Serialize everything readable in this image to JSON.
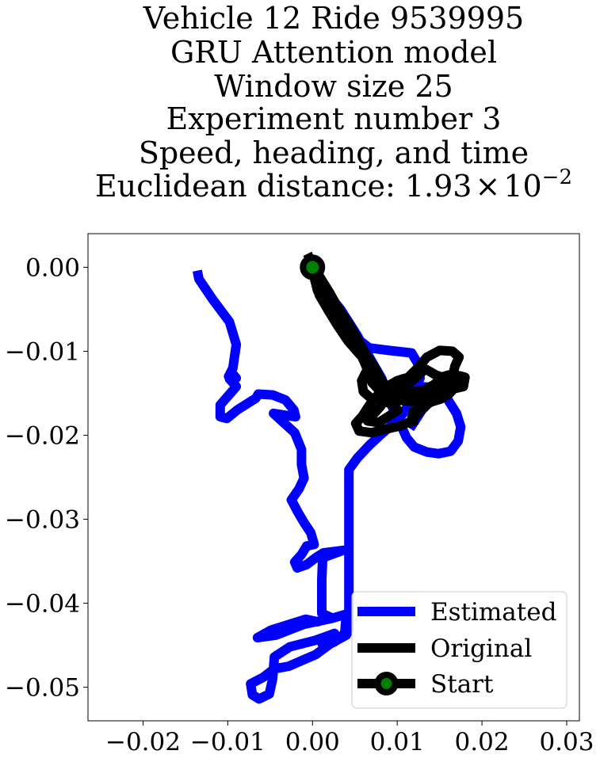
{
  "chart_data": {
    "type": "line",
    "title_lines": [
      "Vehicle 12 Ride 9539995",
      "GRU Attention model",
      "Window size 25",
      "Experiment number 3",
      "Speed, heading, and time"
    ],
    "title_metric_prefix": "Euclidean distance: ",
    "title_metric_mantissa": "1.93",
    "title_metric_times": "×",
    "title_metric_base": "10",
    "title_metric_exponent": "−2",
    "xlabel": "",
    "ylabel": "",
    "xlim": [
      -0.0265,
      0.0315
    ],
    "ylim": [
      -0.054,
      0.004
    ],
    "xticks": [
      -0.02,
      -0.01,
      0.0,
      0.01,
      0.02,
      0.03
    ],
    "xtick_labels": [
      "−0.02",
      "−0.01",
      "0.00",
      "0.01",
      "0.02",
      "0.03"
    ],
    "yticks": [
      0.0,
      -0.01,
      -0.02,
      -0.03,
      -0.04,
      -0.05
    ],
    "ytick_labels": [
      "0.00",
      "−0.01",
      "−0.02",
      "−0.03",
      "−0.04",
      "−0.05"
    ],
    "grid": false,
    "legend_position": "lower-right",
    "series": [
      {
        "name": "Estimated",
        "color": "#0000ff",
        "points": [
          [
            -0.0136,
            -0.0004
          ],
          [
            -0.0134,
            -0.0014
          ],
          [
            -0.0118,
            -0.0038
          ],
          [
            -0.0098,
            -0.0065
          ],
          [
            -0.009,
            -0.0092
          ],
          [
            -0.0094,
            -0.012
          ],
          [
            -0.0099,
            -0.013
          ],
          [
            -0.0094,
            -0.0127
          ],
          [
            -0.009,
            -0.0132
          ],
          [
            -0.0098,
            -0.0133
          ],
          [
            -0.009,
            -0.0142
          ],
          [
            -0.0109,
            -0.0164
          ],
          [
            -0.0109,
            -0.0178
          ],
          [
            -0.0101,
            -0.018
          ],
          [
            -0.0089,
            -0.017
          ],
          [
            -0.0067,
            -0.0156
          ],
          [
            -0.0064,
            -0.0151
          ],
          [
            -0.0047,
            -0.0152
          ],
          [
            -0.0032,
            -0.0158
          ],
          [
            -0.0022,
            -0.017
          ],
          [
            -0.002,
            -0.0178
          ],
          [
            -0.0046,
            -0.0174
          ],
          [
            -0.0021,
            -0.0197
          ],
          [
            -0.0013,
            -0.0217
          ],
          [
            -0.0013,
            -0.0235
          ],
          [
            -0.001,
            -0.0251
          ],
          [
            -0.0016,
            -0.0264
          ],
          [
            -0.0025,
            -0.0277
          ],
          [
            -0.0017,
            -0.0292
          ],
          [
            -0.001,
            -0.0304
          ],
          [
            -0.0002,
            -0.0316
          ],
          [
            0.0002,
            -0.033
          ],
          [
            -0.0007,
            -0.0332
          ],
          [
            -0.0013,
            -0.0342
          ],
          [
            -0.0021,
            -0.0351
          ],
          [
            -0.0018,
            -0.0358
          ],
          [
            -0.0007,
            -0.0354
          ],
          [
            0.0005,
            -0.0345
          ],
          [
            0.0013,
            -0.034
          ],
          [
            0.0036,
            -0.0337
          ],
          [
            0.0012,
            -0.0346
          ],
          [
            0.0011,
            -0.0372
          ],
          [
            0.0011,
            -0.0412
          ],
          [
            0.0022,
            -0.0417
          ],
          [
            0.0006,
            -0.0422
          ],
          [
            -0.0008,
            -0.0419
          ],
          [
            -0.0049,
            -0.0432
          ],
          [
            -0.0065,
            -0.0441
          ],
          [
            -0.0043,
            -0.0438
          ],
          [
            -0.001,
            -0.0425
          ],
          [
            0.0023,
            -0.0418
          ],
          [
            0.004,
            -0.0413
          ],
          [
            0.0038,
            -0.0436
          ],
          [
            0.0026,
            -0.0446
          ],
          [
            0.0013,
            -0.0452
          ],
          [
            0.001,
            -0.0445
          ],
          [
            0.0016,
            -0.044
          ],
          [
            0.0026,
            -0.0436
          ],
          [
            0.0004,
            -0.0444
          ],
          [
            -0.0027,
            -0.0452
          ],
          [
            -0.0045,
            -0.0464
          ],
          [
            -0.0047,
            -0.049
          ],
          [
            -0.0051,
            -0.0508
          ],
          [
            -0.0063,
            -0.0514
          ],
          [
            -0.0071,
            -0.0509
          ],
          [
            -0.0073,
            -0.0496
          ],
          [
            -0.0058,
            -0.0488
          ],
          [
            -0.0045,
            -0.0478
          ],
          [
            -0.0028,
            -0.0475
          ],
          [
            0.0004,
            -0.0461
          ],
          [
            0.002,
            -0.0449
          ],
          [
            0.004,
            -0.0438
          ],
          [
            0.0043,
            -0.0431
          ],
          [
            0.0043,
            -0.0387
          ],
          [
            0.0043,
            -0.0342
          ],
          [
            0.0043,
            -0.0303
          ],
          [
            0.0043,
            -0.0266
          ],
          [
            0.0043,
            -0.0241
          ],
          [
            0.0053,
            -0.0227
          ],
          [
            0.0067,
            -0.0212
          ],
          [
            0.0082,
            -0.0198
          ],
          [
            0.0096,
            -0.0186
          ],
          [
            0.0107,
            -0.0174
          ],
          [
            0.0115,
            -0.0161
          ],
          [
            0.0121,
            -0.0145
          ],
          [
            0.0127,
            -0.0132
          ],
          [
            0.0124,
            -0.0114
          ],
          [
            0.0117,
            -0.0102
          ],
          [
            0.009,
            -0.0099
          ],
          [
            0.0067,
            -0.0096
          ],
          [
            0.0049,
            -0.0082
          ],
          [
            0.0031,
            -0.0063
          ],
          [
            0.0015,
            -0.004
          ],
          [
            0.0006,
            -0.0018
          ],
          [
            0.0003,
            -0.0002
          ],
          [
            0.0017,
            -0.003
          ],
          [
            0.0033,
            -0.005
          ],
          [
            0.0052,
            -0.008
          ],
          [
            0.007,
            -0.0112
          ],
          [
            0.0082,
            -0.0133
          ],
          [
            0.0089,
            -0.0156
          ],
          [
            0.01,
            -0.0178
          ],
          [
            0.0111,
            -0.0203
          ],
          [
            0.012,
            -0.0214
          ],
          [
            0.0135,
            -0.022
          ],
          [
            0.0149,
            -0.0222
          ],
          [
            0.0163,
            -0.0219
          ],
          [
            0.0172,
            -0.0207
          ],
          [
            0.0175,
            -0.019
          ],
          [
            0.017,
            -0.0174
          ],
          [
            0.016,
            -0.0158
          ],
          [
            0.0152,
            -0.0148
          ],
          [
            0.0143,
            -0.0143
          ],
          [
            0.0122,
            -0.0142
          ],
          [
            0.0109,
            -0.0151
          ],
          [
            0.0111,
            -0.016
          ],
          [
            0.0122,
            -0.0158
          ],
          [
            0.0131,
            -0.0153
          ],
          [
            0.0133,
            -0.0164
          ],
          [
            0.0124,
            -0.0178
          ],
          [
            0.0115,
            -0.0192
          ]
        ]
      },
      {
        "name": "Original",
        "color": "#000000",
        "points": [
          [
            -0.0006,
            0.0016
          ],
          [
            0.0002,
            0.0
          ],
          [
            0.0012,
            -0.0017
          ],
          [
            0.002,
            -0.003
          ],
          [
            0.003,
            -0.0048
          ],
          [
            0.0042,
            -0.0066
          ],
          [
            0.0053,
            -0.0085
          ],
          [
            0.0064,
            -0.0105
          ],
          [
            0.0074,
            -0.012
          ],
          [
            0.0082,
            -0.0136
          ],
          [
            0.0092,
            -0.0146
          ],
          [
            0.011,
            -0.0149
          ],
          [
            0.013,
            -0.0147
          ],
          [
            0.0143,
            -0.014
          ],
          [
            0.0155,
            -0.013
          ],
          [
            0.0165,
            -0.0127
          ],
          [
            0.018,
            -0.0131
          ],
          [
            0.0178,
            -0.0142
          ],
          [
            0.017,
            -0.0144
          ],
          [
            0.0165,
            -0.0132
          ],
          [
            0.0168,
            -0.0118
          ],
          [
            0.0173,
            -0.0107
          ],
          [
            0.0165,
            -0.01
          ],
          [
            0.015,
            -0.0099
          ],
          [
            0.0135,
            -0.0107
          ],
          [
            0.0124,
            -0.012
          ],
          [
            0.0113,
            -0.0131
          ],
          [
            0.01,
            -0.0135
          ],
          [
            0.0088,
            -0.0142
          ],
          [
            0.0078,
            -0.0151
          ],
          [
            0.007,
            -0.016
          ],
          [
            0.0064,
            -0.0169
          ],
          [
            0.0059,
            -0.0177
          ],
          [
            0.0051,
            -0.0186
          ],
          [
            0.0055,
            -0.0195
          ],
          [
            0.007,
            -0.0197
          ],
          [
            0.0085,
            -0.0193
          ],
          [
            0.0103,
            -0.0189
          ],
          [
            0.0115,
            -0.0184
          ],
          [
            0.0127,
            -0.0172
          ],
          [
            0.0138,
            -0.0161
          ],
          [
            0.0151,
            -0.0157
          ],
          [
            0.0162,
            -0.015
          ],
          [
            0.017,
            -0.0141
          ],
          [
            0.0172,
            -0.0135
          ],
          [
            0.0158,
            -0.0133
          ],
          [
            0.0145,
            -0.0128
          ],
          [
            0.0133,
            -0.0121
          ],
          [
            0.0128,
            -0.0126
          ],
          [
            0.0112,
            -0.014
          ],
          [
            0.0098,
            -0.0148
          ],
          [
            0.0086,
            -0.0157
          ],
          [
            0.008,
            -0.0166
          ],
          [
            0.0072,
            -0.0175
          ],
          [
            0.0065,
            -0.0183
          ],
          [
            0.0078,
            -0.0185
          ],
          [
            0.0092,
            -0.0176
          ],
          [
            0.0101,
            -0.017
          ],
          [
            0.0094,
            -0.0163
          ],
          [
            0.008,
            -0.0158
          ],
          [
            0.0068,
            -0.0155
          ],
          [
            0.006,
            -0.0148
          ],
          [
            0.0058,
            -0.0135
          ],
          [
            0.0063,
            -0.0125
          ],
          [
            0.0068,
            -0.0115
          ],
          [
            0.0056,
            -0.0104
          ],
          [
            0.0042,
            -0.0088
          ],
          [
            0.003,
            -0.007
          ],
          [
            0.0019,
            -0.0052
          ],
          [
            0.0008,
            -0.0033
          ],
          [
            0.0002,
            -0.0012
          ],
          [
            0.0006,
            -0.0028
          ],
          [
            0.0016,
            -0.0045
          ],
          [
            0.003,
            -0.0062
          ],
          [
            0.0043,
            -0.0078
          ],
          [
            0.0054,
            -0.0097
          ],
          [
            0.0063,
            -0.0117
          ],
          [
            0.007,
            -0.0137
          ],
          [
            0.0082,
            -0.015
          ],
          [
            0.01,
            -0.0158
          ],
          [
            0.0118,
            -0.016
          ],
          [
            0.0135,
            -0.0153
          ],
          [
            0.0148,
            -0.0146
          ],
          [
            0.0157,
            -0.014
          ],
          [
            0.015,
            -0.0148
          ],
          [
            0.0143,
            -0.0158
          ],
          [
            0.0132,
            -0.0166
          ],
          [
            0.0119,
            -0.0172
          ],
          [
            0.0117,
            -0.0181
          ],
          [
            0.012,
            -0.0189
          ]
        ]
      }
    ],
    "start": {
      "name": "Start",
      "x": 0.0,
      "y": 0.0,
      "marker_color": "#008000",
      "edge_color": "#000000"
    },
    "legend": [
      {
        "label": "Estimated",
        "kind": "line",
        "color": "#0000ff"
      },
      {
        "label": "Original",
        "kind": "line",
        "color": "#000000"
      },
      {
        "label": "Start",
        "kind": "line-marker",
        "color": "#000000",
        "marker_color": "#008000"
      }
    ]
  }
}
